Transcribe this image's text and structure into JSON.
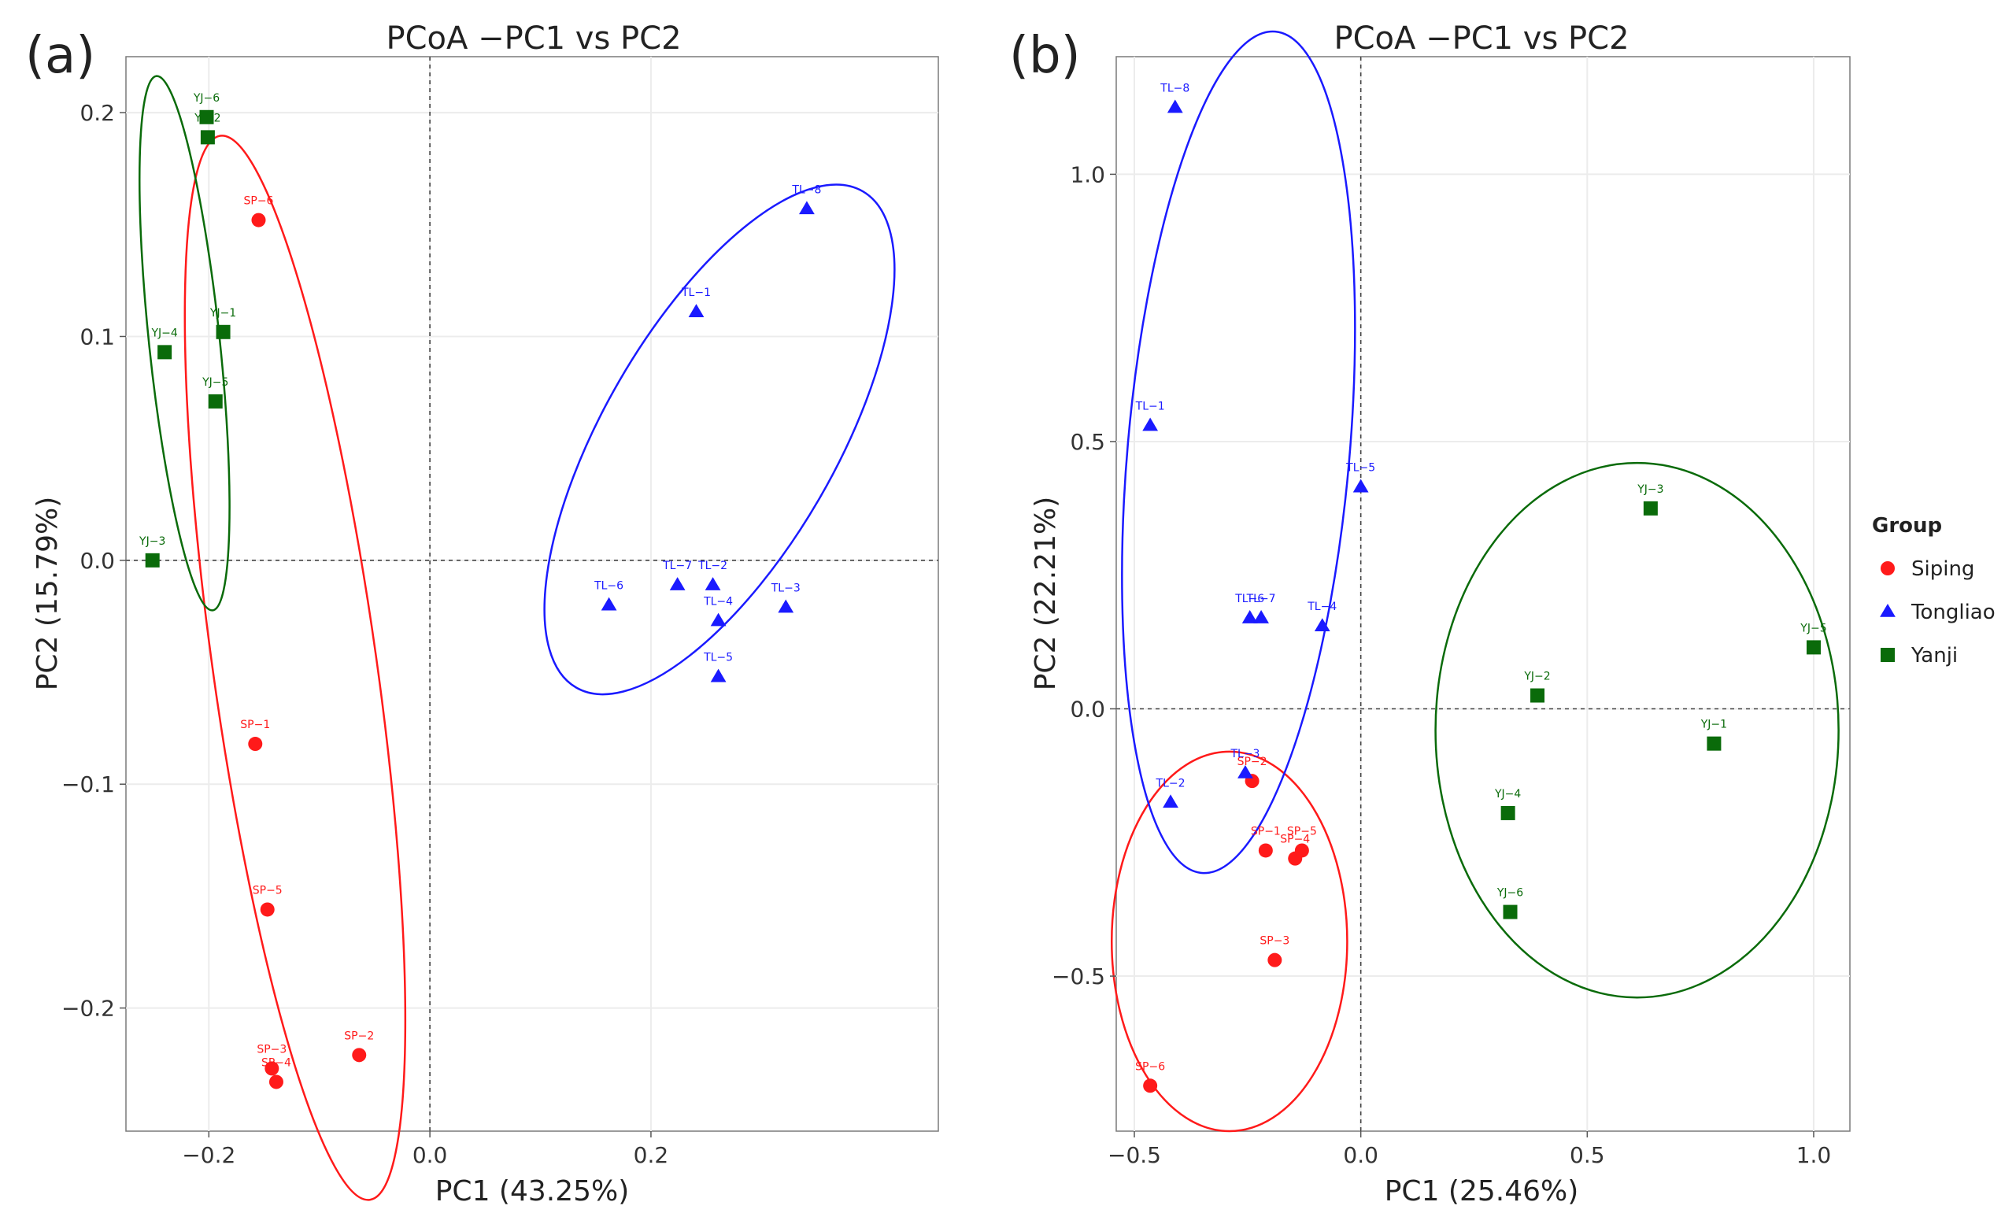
{
  "colors": {
    "Siping": "#ff1a1a",
    "Tongliao": "#1a1aff",
    "Yanji": "#0a6b0a"
  },
  "legend": {
    "title": "Group",
    "entries": [
      {
        "name": "Siping",
        "shape": "circle"
      },
      {
        "name": "Tongliao",
        "shape": "triangle"
      },
      {
        "name": "Yanji",
        "shape": "square"
      }
    ]
  },
  "chart_data": [
    {
      "type": "scatter",
      "panel_label": "(a)",
      "title": "PCoA −PC1 vs PC2",
      "xlabel": "PC1 (43.25%)",
      "ylabel": "PC2 (15.79%)",
      "xlim": [
        -0.275,
        0.46
      ],
      "ylim": [
        -0.255,
        0.225
      ],
      "xticks": [
        {
          "v": -0.2,
          "label": "−0.2"
        },
        {
          "v": 0.0,
          "label": "0.0"
        },
        {
          "v": 0.2,
          "label": "0.2"
        }
      ],
      "yticks": [
        {
          "v": -0.2,
          "label": "−0.2"
        },
        {
          "v": -0.1,
          "label": "−0.1"
        },
        {
          "v": 0.0,
          "label": "0.0"
        },
        {
          "v": 0.1,
          "label": "0.1"
        },
        {
          "v": 0.2,
          "label": "0.2"
        }
      ],
      "grid": true,
      "zero_lines": true,
      "series": [
        {
          "name": "Siping",
          "points": [
            {
              "id": "SP−1",
              "x": -0.158,
              "y": -0.082
            },
            {
              "id": "SP−2",
              "x": -0.064,
              "y": -0.221
            },
            {
              "id": "SP−3",
              "x": -0.143,
              "y": -0.227
            },
            {
              "id": "SP−4",
              "x": -0.139,
              "y": -0.233
            },
            {
              "id": "SP−5",
              "x": -0.147,
              "y": -0.156
            },
            {
              "id": "SP−6",
              "x": -0.155,
              "y": 0.152
            }
          ]
        },
        {
          "name": "Tongliao",
          "points": [
            {
              "id": "TL−1",
              "x": 0.241,
              "y": 0.111
            },
            {
              "id": "TL−2",
              "x": 0.256,
              "y": -0.011
            },
            {
              "id": "TL−3",
              "x": 0.322,
              "y": -0.021
            },
            {
              "id": "TL−4",
              "x": 0.261,
              "y": -0.027
            },
            {
              "id": "TL−5",
              "x": 0.261,
              "y": -0.052
            },
            {
              "id": "TL−6",
              "x": 0.162,
              "y": -0.02
            },
            {
              "id": "TL−7",
              "x": 0.224,
              "y": -0.011
            },
            {
              "id": "TL−8",
              "x": 0.341,
              "y": 0.157
            }
          ]
        },
        {
          "name": "Yanji",
          "points": [
            {
              "id": "YJ−1",
              "x": -0.187,
              "y": 0.102
            },
            {
              "id": "YJ−2",
              "x": -0.201,
              "y": 0.189
            },
            {
              "id": "YJ−3",
              "x": -0.251,
              "y": 0.0
            },
            {
              "id": "YJ−4",
              "x": -0.24,
              "y": 0.093
            },
            {
              "id": "YJ−5",
              "x": -0.194,
              "y": 0.071
            },
            {
              "id": "YJ−6",
              "x": -0.202,
              "y": 0.198
            }
          ]
        }
      ],
      "ellipses": [
        {
          "series": "Siping",
          "cx": -0.122,
          "cy": -0.048,
          "rx": 0.074,
          "ry": 0.24,
          "angle": -8
        },
        {
          "series": "Tongliao",
          "cx": 0.262,
          "cy": 0.054,
          "rx": 0.105,
          "ry": 0.128,
          "angle": 30
        },
        {
          "series": "Yanji",
          "cx": -0.222,
          "cy": 0.097,
          "rx": 0.032,
          "ry": 0.12,
          "angle": -6
        }
      ]
    },
    {
      "type": "scatter",
      "panel_label": "(b)",
      "title": "PCoA −PC1 vs PC2",
      "xlabel": "PC1 (25.46%)",
      "ylabel": "PC2 (22.21%)",
      "xlim": [
        -0.54,
        1.08
      ],
      "ylim": [
        -0.79,
        1.22
      ],
      "xticks": [
        {
          "v": -0.5,
          "label": "−0.5"
        },
        {
          "v": 0.0,
          "label": "0.0"
        },
        {
          "v": 0.5,
          "label": "0.5"
        },
        {
          "v": 1.0,
          "label": "1.0"
        }
      ],
      "yticks": [
        {
          "v": -0.5,
          "label": "−0.5"
        },
        {
          "v": 0.0,
          "label": "0.0"
        },
        {
          "v": 0.5,
          "label": "0.5"
        },
        {
          "v": 1.0,
          "label": "1.0"
        }
      ],
      "grid": true,
      "zero_lines": true,
      "series": [
        {
          "name": "Siping",
          "points": [
            {
              "id": "SP−1",
              "x": -0.21,
              "y": -0.265
            },
            {
              "id": "SP−2",
              "x": -0.24,
              "y": -0.135
            },
            {
              "id": "SP−3",
              "x": -0.19,
              "y": -0.47
            },
            {
              "id": "SP−4",
              "x": -0.145,
              "y": -0.28
            },
            {
              "id": "SP−5",
              "x": -0.13,
              "y": -0.265
            },
            {
              "id": "SP−6",
              "x": -0.465,
              "y": -0.705
            }
          ]
        },
        {
          "name": "Tongliao",
          "points": [
            {
              "id": "TL−1",
              "x": -0.465,
              "y": 0.53
            },
            {
              "id": "TL−2",
              "x": -0.42,
              "y": -0.175
            },
            {
              "id": "TL−3",
              "x": -0.255,
              "y": -0.12
            },
            {
              "id": "TL−4",
              "x": -0.085,
              "y": 0.155
            },
            {
              "id": "TL−5",
              "x": 0.0,
              "y": 0.415
            },
            {
              "id": "TL−6",
              "x": -0.245,
              "y": 0.17
            },
            {
              "id": "TL−7",
              "x": -0.22,
              "y": 0.17
            },
            {
              "id": "TL−8",
              "x": -0.41,
              "y": 1.125
            }
          ]
        },
        {
          "name": "Yanji",
          "points": [
            {
              "id": "YJ−1",
              "x": 0.78,
              "y": -0.065
            },
            {
              "id": "YJ−2",
              "x": 0.39,
              "y": 0.025
            },
            {
              "id": "YJ−3",
              "x": 0.64,
              "y": 0.375
            },
            {
              "id": "YJ−4",
              "x": 0.325,
              "y": -0.195
            },
            {
              "id": "YJ−5",
              "x": 1.0,
              "y": 0.115
            },
            {
              "id": "YJ−6",
              "x": 0.33,
              "y": -0.38
            }
          ]
        }
      ],
      "ellipses": [
        {
          "series": "Siping",
          "cx": -0.29,
          "cy": -0.435,
          "rx": 0.26,
          "ry": 0.355,
          "angle": 0
        },
        {
          "series": "Tongliao",
          "cx": -0.27,
          "cy": 0.48,
          "rx": 0.245,
          "ry": 0.79,
          "angle": 5
        },
        {
          "series": "Yanji",
          "cx": 0.61,
          "cy": -0.04,
          "rx": 0.445,
          "ry": 0.5,
          "angle": 0
        }
      ]
    }
  ]
}
